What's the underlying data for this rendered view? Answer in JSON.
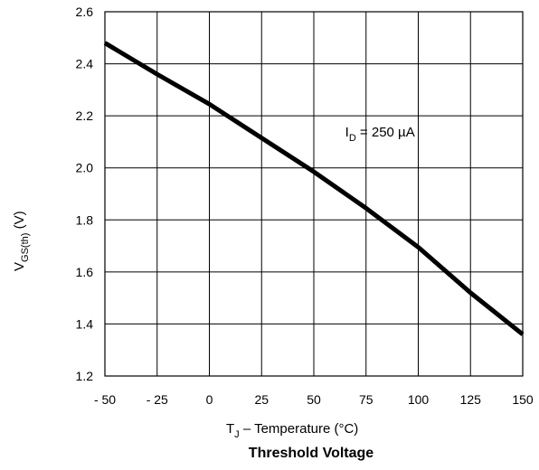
{
  "chart_data": {
    "type": "line",
    "title": "Threshold Voltage",
    "xlabel": {
      "main": "T",
      "sub": "J",
      "rest": " – Temperature (°C)"
    },
    "ylabel": {
      "main": "V",
      "sub": "GS(th)",
      "rest": " (V)"
    },
    "xlim": [
      -50,
      150
    ],
    "ylim": [
      1.2,
      2.6
    ],
    "grid": true,
    "x_ticks": [
      -50,
      -25,
      0,
      25,
      50,
      75,
      100,
      125,
      150
    ],
    "x_tick_labels": [
      "- 50",
      "- 25",
      "0",
      "25",
      "50",
      "75",
      "100",
      "125",
      "150"
    ],
    "y_ticks": [
      1.2,
      1.4,
      1.6,
      1.8,
      2.0,
      2.2,
      2.4,
      2.6
    ],
    "y_tick_labels": [
      "1.2",
      "1.4",
      "1.6",
      "1.8",
      "2.0",
      "2.2",
      "2.4",
      "2.6"
    ],
    "annotation": {
      "main": "I",
      "sub": "D",
      "rest": " = 250  µA",
      "x": 65,
      "y": 2.12
    },
    "series": [
      {
        "x": [
          -50,
          -25,
          0,
          25,
          50,
          75,
          100,
          125,
          150
        ],
        "y": [
          2.48,
          2.36,
          2.245,
          2.115,
          1.985,
          1.845,
          1.695,
          1.52,
          1.36
        ]
      }
    ],
    "line_color": "#000000"
  }
}
